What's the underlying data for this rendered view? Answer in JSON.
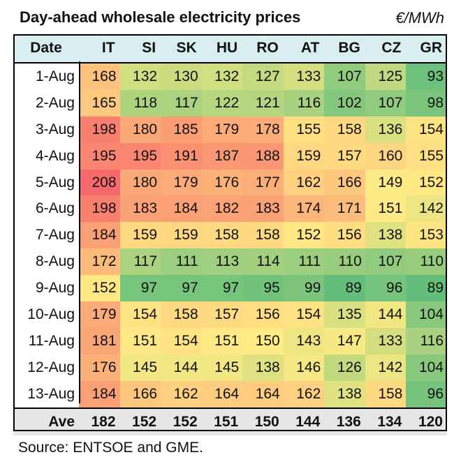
{
  "title": "Day-ahead wholesale electricity prices",
  "unit": "€/MWh",
  "source": "Source: ENTSOE and GME.",
  "chart_data": {
    "type": "heatmap",
    "columns": [
      "Date",
      "IT",
      "SI",
      "SK",
      "HU",
      "RO",
      "AT",
      "BG",
      "CZ",
      "GR"
    ],
    "rows": [
      {
        "date": "1-Aug",
        "values": [
          168,
          132,
          130,
          132,
          127,
          133,
          107,
          125,
          93
        ]
      },
      {
        "date": "2-Aug",
        "values": [
          165,
          118,
          117,
          122,
          121,
          116,
          102,
          107,
          98
        ]
      },
      {
        "date": "3-Aug",
        "values": [
          198,
          180,
          185,
          179,
          178,
          155,
          158,
          136,
          154
        ]
      },
      {
        "date": "4-Aug",
        "values": [
          195,
          195,
          191,
          187,
          188,
          159,
          157,
          160,
          155
        ]
      },
      {
        "date": "5-Aug",
        "values": [
          208,
          180,
          179,
          176,
          177,
          162,
          166,
          149,
          152
        ]
      },
      {
        "date": "6-Aug",
        "values": [
          198,
          183,
          184,
          182,
          183,
          174,
          171,
          151,
          142
        ]
      },
      {
        "date": "7-Aug",
        "values": [
          184,
          159,
          159,
          158,
          158,
          152,
          156,
          138,
          153
        ]
      },
      {
        "date": "8-Aug",
        "values": [
          172,
          117,
          111,
          113,
          114,
          111,
          110,
          107,
          110
        ]
      },
      {
        "date": "9-Aug",
        "values": [
          152,
          97,
          97,
          97,
          95,
          99,
          89,
          96,
          89
        ]
      },
      {
        "date": "10-Aug",
        "values": [
          179,
          154,
          158,
          157,
          156,
          154,
          135,
          144,
          104
        ]
      },
      {
        "date": "11-Aug",
        "values": [
          181,
          151,
          154,
          151,
          150,
          143,
          147,
          133,
          116
        ]
      },
      {
        "date": "12-Aug",
        "values": [
          176,
          145,
          144,
          145,
          138,
          146,
          126,
          142,
          104
        ]
      },
      {
        "date": "13-Aug",
        "values": [
          184,
          166,
          162,
          164,
          164,
          162,
          138,
          158,
          96
        ]
      }
    ],
    "average": {
      "label": "Ave",
      "values": [
        182,
        152,
        152,
        151,
        150,
        144,
        136,
        134,
        120
      ]
    },
    "color_scale": {
      "low": "#63be7b",
      "mid": "#ffeb84",
      "high": "#f8696b"
    }
  }
}
